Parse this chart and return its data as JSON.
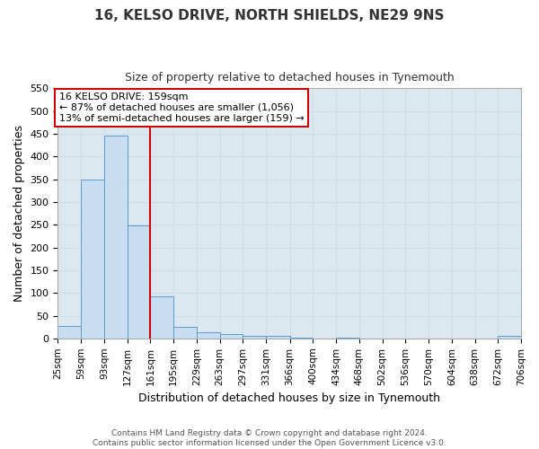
{
  "title1": "16, KELSO DRIVE, NORTH SHIELDS, NE29 9NS",
  "title2": "Size of property relative to detached houses in Tynemouth",
  "xlabel": "Distribution of detached houses by size in Tynemouth",
  "ylabel": "Number of detached properties",
  "bar_values": [
    27,
    349,
    445,
    248,
    93,
    25,
    14,
    10,
    5,
    5,
    2,
    0,
    2,
    0,
    0,
    0,
    0,
    0,
    0,
    5
  ],
  "bin_edges": [
    25,
    59,
    93,
    127,
    161,
    195,
    229,
    263,
    297,
    331,
    366,
    400,
    434,
    468,
    502,
    536,
    570,
    604,
    638,
    672,
    706
  ],
  "tick_labels": [
    "25sqm",
    "59sqm",
    "93sqm",
    "127sqm",
    "161sqm",
    "195sqm",
    "229sqm",
    "263sqm",
    "297sqm",
    "331sqm",
    "366sqm",
    "400sqm",
    "434sqm",
    "468sqm",
    "502sqm",
    "536sqm",
    "570sqm",
    "604sqm",
    "638sqm",
    "672sqm",
    "706sqm"
  ],
  "ylim": [
    0,
    550
  ],
  "yticks": [
    0,
    50,
    100,
    150,
    200,
    250,
    300,
    350,
    400,
    450,
    500,
    550
  ],
  "vline_x": 161,
  "bar_color": "#c9ddf0",
  "bar_edge_color": "#5b9bd5",
  "vline_color": "#cc0000",
  "annotation_text": "16 KELSO DRIVE: 159sqm\n← 87% of detached houses are smaller (1,056)\n13% of semi-detached houses are larger (159) →",
  "annotation_box_color": "white",
  "annotation_box_edge_color": "#cc0000",
  "grid_color": "#d0dce8",
  "plot_bg_color": "#dce8f0",
  "fig_bg_color": "#ffffff",
  "footer": "Contains HM Land Registry data © Crown copyright and database right 2024.\nContains public sector information licensed under the Open Government Licence v3.0.",
  "title1_fontsize": 11,
  "title2_fontsize": 9,
  "ylabel_fontsize": 9,
  "xlabel_fontsize": 9,
  "tick_fontsize": 7.5,
  "annot_fontsize": 8,
  "footer_fontsize": 6.5
}
